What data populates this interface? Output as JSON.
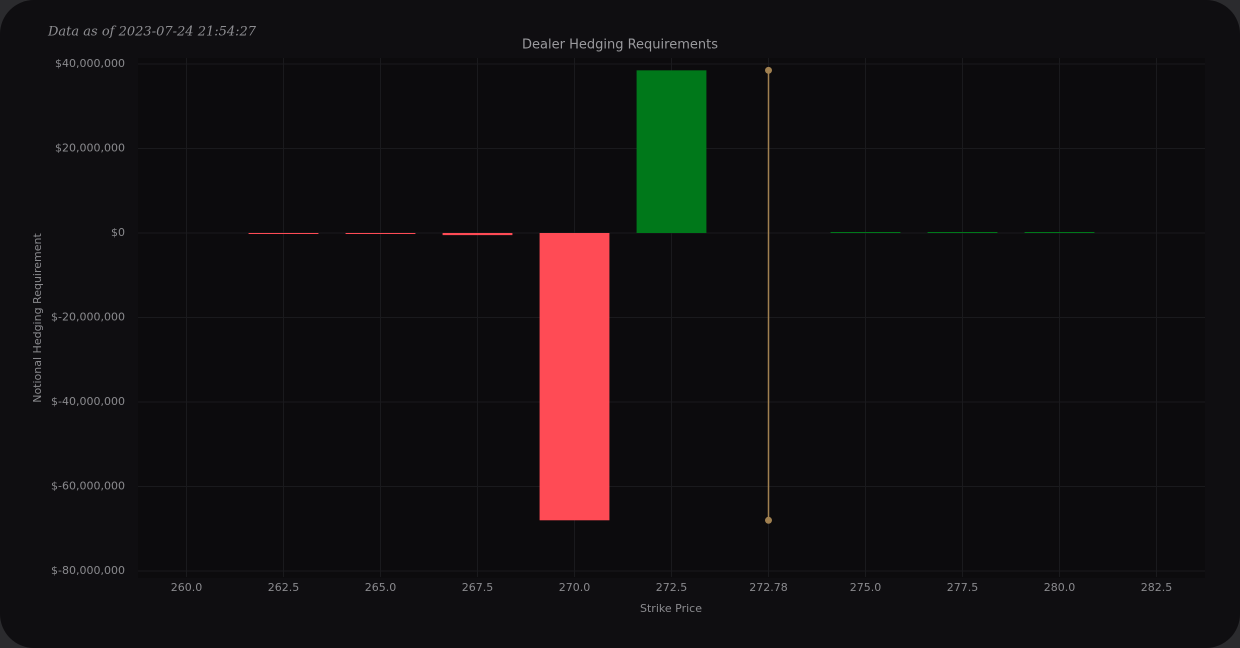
{
  "chart_data": {
    "type": "bar",
    "title": "Dealer Hedging Requirements",
    "subtitle": "Data as of 2023-07-24 21:54:27",
    "x_label": "Strike Price",
    "y_label": "Notional Hedging Requirement",
    "categories": [
      "260.0",
      "262.5",
      "265.0",
      "267.5",
      "270.0",
      "272.5",
      "272.78",
      "275.0",
      "277.5",
      "280.0",
      "282.5"
    ],
    "values": [
      null,
      -200000,
      -200000,
      -500000,
      -68000000,
      38500000,
      null,
      100000,
      100000,
      100000,
      null
    ],
    "colors": {
      "positive": "#00781a",
      "negative": "#ff4b55"
    },
    "spot": {
      "x": 272.78,
      "y": [
        38500000,
        -68000000
      ],
      "color": "#a08050"
    },
    "ylim": [
      -80000000,
      40000000
    ],
    "yticks": [
      {
        "value": -80000000,
        "label": "$-80,000,000"
      },
      {
        "value": -60000000,
        "label": "$-60,000,000"
      },
      {
        "value": -40000000,
        "label": "$-40,000,000"
      },
      {
        "value": -20000000,
        "label": "$-20,000,000"
      },
      {
        "value": 0,
        "label": "$0"
      },
      {
        "value": 20000000,
        "label": "$20,000,000"
      },
      {
        "value": 40000000,
        "label": "$40,000,000"
      }
    ],
    "grid": true
  }
}
